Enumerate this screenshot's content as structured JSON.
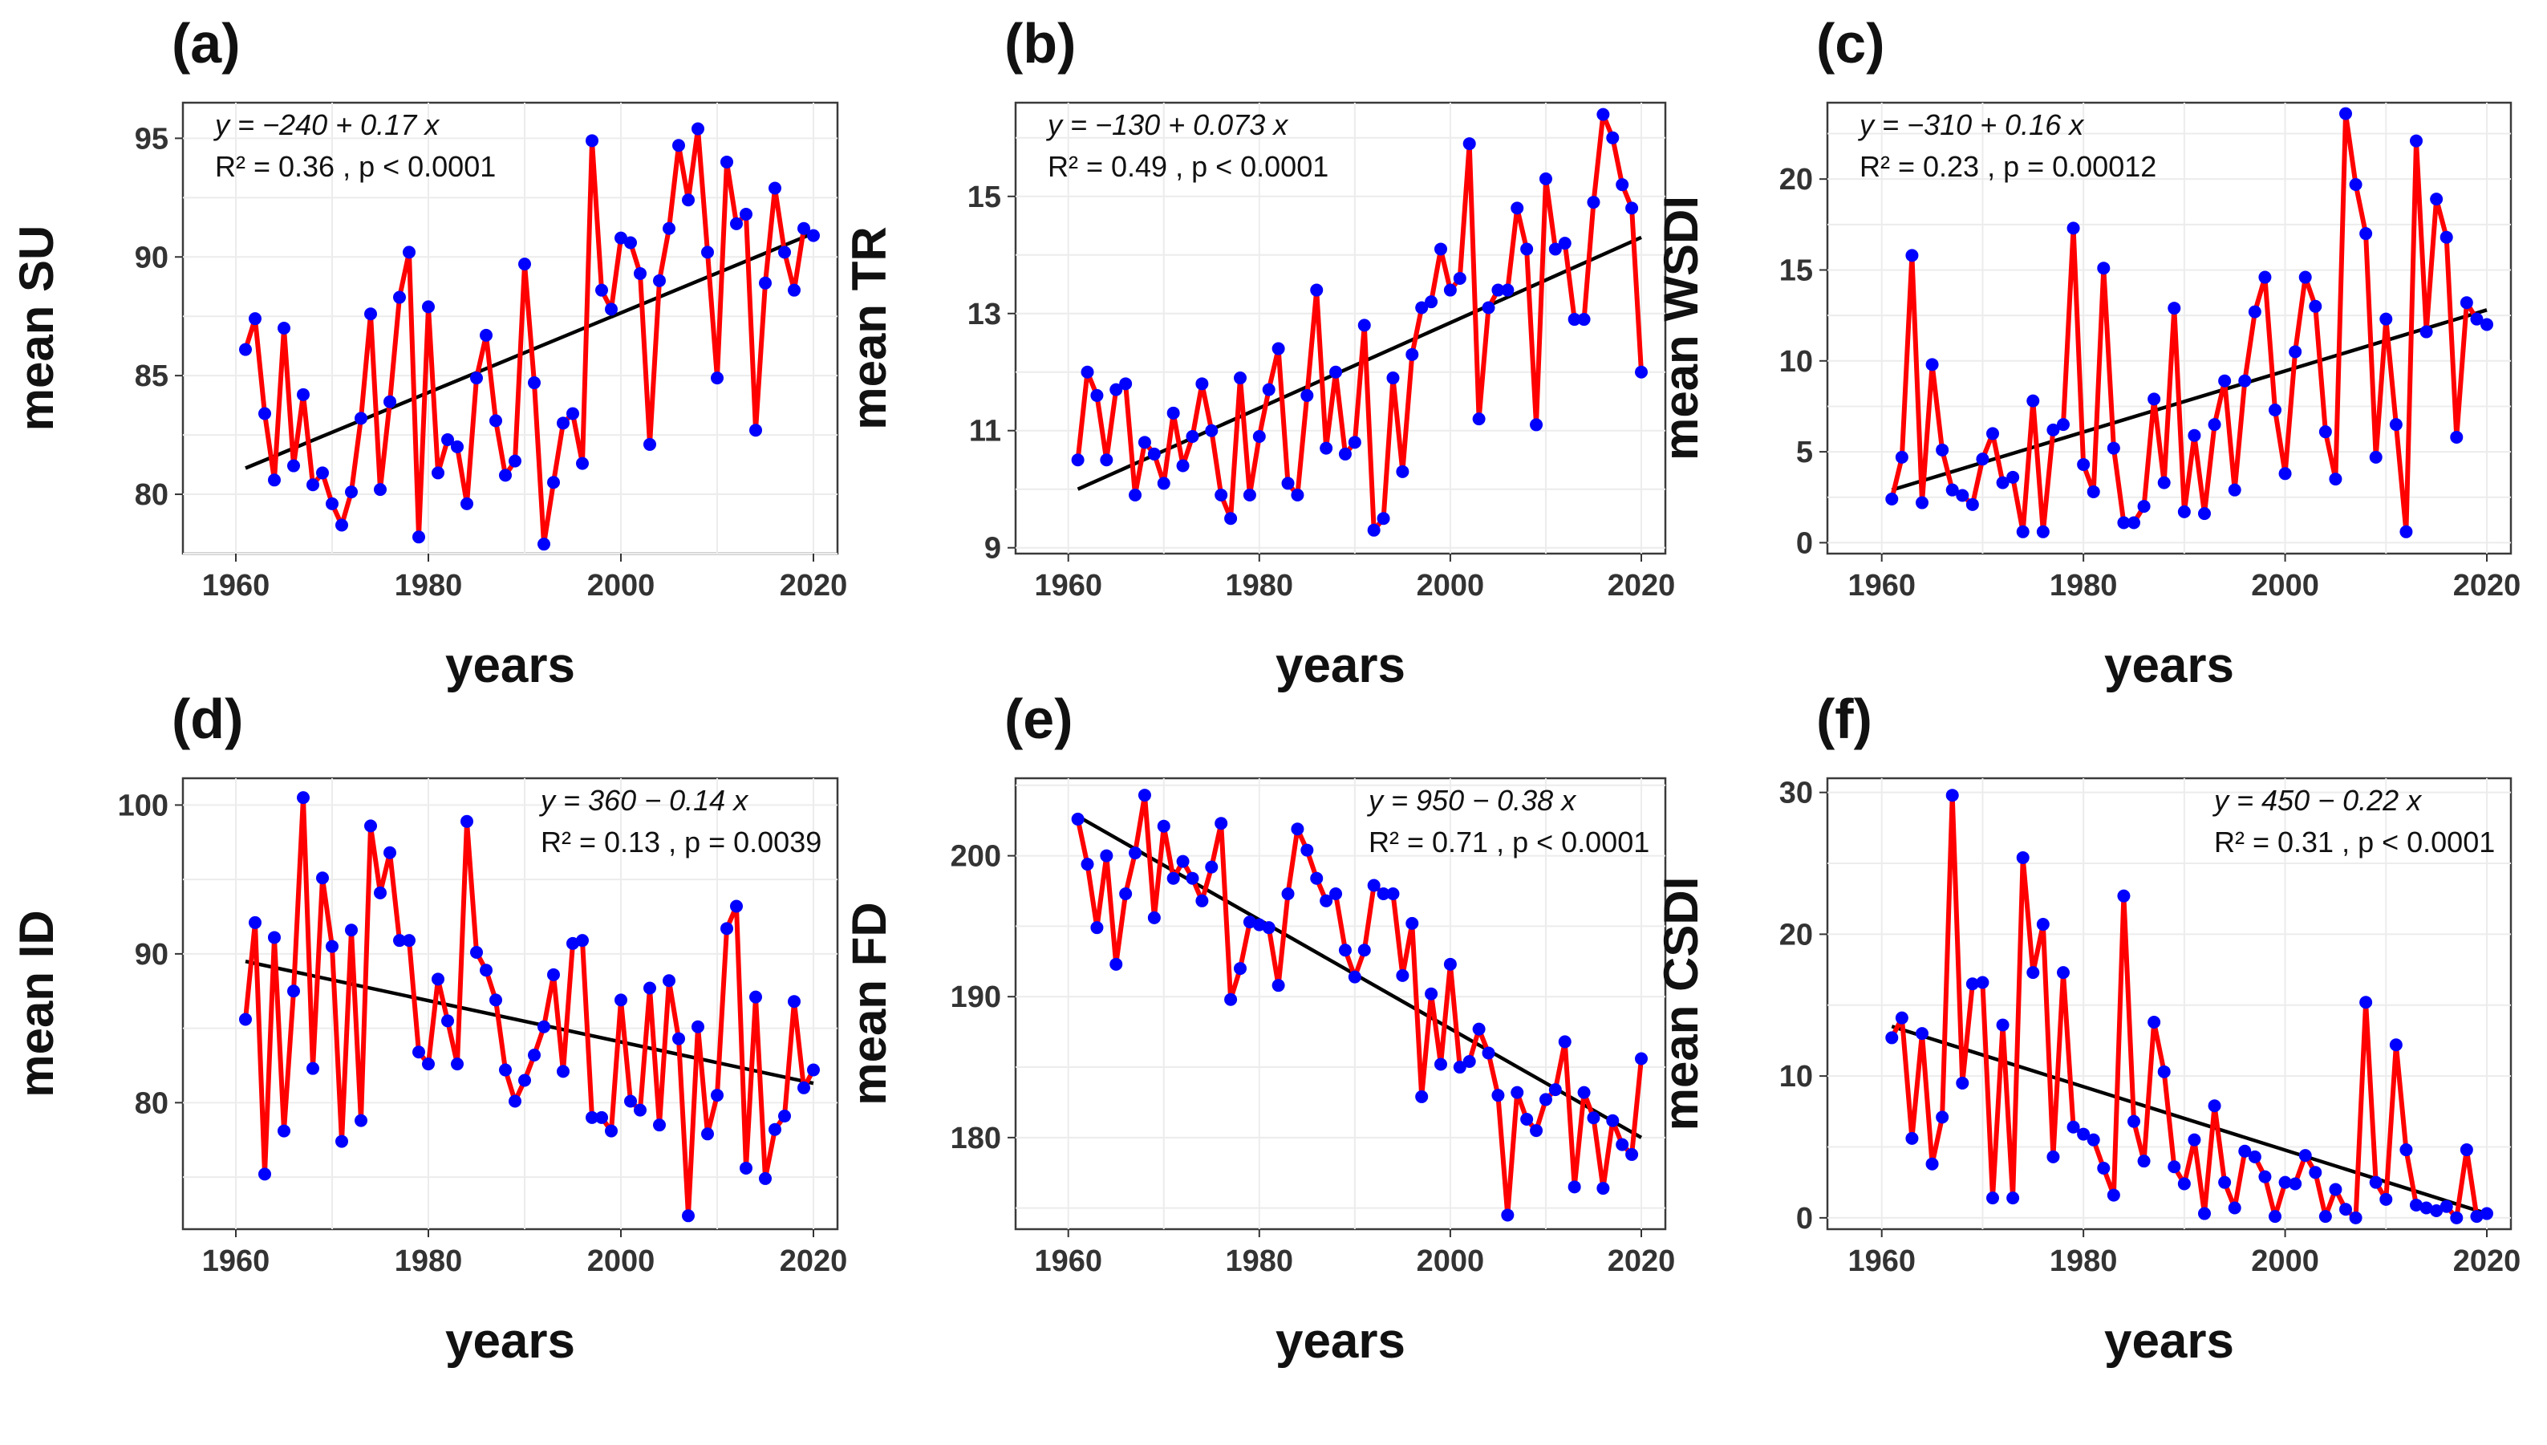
{
  "figure_panels": [
    "a",
    "b",
    "c",
    "d",
    "e",
    "f"
  ],
  "chart_data": [
    {
      "type": "line",
      "panel_label": "(a)",
      "xlabel": "years",
      "ylabel": "mean SU",
      "x_start": 1961,
      "xlim": [
        1957,
        2020
      ],
      "ylim": [
        77.5,
        96.5
      ],
      "x_ticks": [
        1960,
        1980,
        2000,
        2020
      ],
      "y_ticks": [
        80,
        85,
        90,
        95
      ],
      "equation": "y = −240 + 0.17 x",
      "r2_text": "R² = 0.36 ,  p < 0.0001",
      "annotation_position": "top-left",
      "trend": {
        "x": [
          1961,
          2020
        ],
        "y": [
          81.1,
          91.0
        ]
      },
      "values": [
        86.1,
        87.4,
        83.4,
        80.6,
        87.0,
        81.2,
        84.2,
        80.4,
        80.9,
        79.6,
        78.7,
        80.1,
        83.2,
        87.6,
        80.2,
        83.9,
        88.3,
        90.2,
        78.2,
        87.9,
        80.9,
        82.3,
        82.0,
        79.6,
        84.9,
        86.7,
        83.1,
        80.8,
        81.4,
        89.7,
        84.7,
        77.9,
        80.5,
        83.0,
        83.4,
        81.3,
        94.9,
        88.6,
        87.8,
        90.8,
        90.6,
        89.3,
        82.1,
        89.0,
        91.2,
        94.7,
        92.4,
        95.4,
        90.2,
        84.9,
        94.0,
        91.4,
        91.8,
        82.7,
        88.9,
        92.9,
        90.2,
        88.6,
        91.2,
        90.9
      ]
    },
    {
      "type": "line",
      "panel_label": "(b)",
      "xlabel": "years",
      "ylabel": "mean TR",
      "x_start": 1961,
      "xlim": [
        1957,
        2020
      ],
      "ylim": [
        8.9,
        16.6
      ],
      "x_ticks": [
        1960,
        1980,
        2000,
        2020
      ],
      "y_ticks": [
        9,
        11,
        13,
        15
      ],
      "equation": "y = −130 + 0.073 x",
      "r2_text": "R² = 0.49 ,  p < 0.0001",
      "annotation_position": "top-left",
      "trend": {
        "x": [
          1961,
          2020
        ],
        "y": [
          10.0,
          14.3
        ]
      },
      "values": [
        10.5,
        12.0,
        11.6,
        10.5,
        11.7,
        11.8,
        9.9,
        10.8,
        10.6,
        10.1,
        11.3,
        10.4,
        10.9,
        11.8,
        11.0,
        9.9,
        9.5,
        11.9,
        9.9,
        10.9,
        11.7,
        12.4,
        10.1,
        9.9,
        11.6,
        13.4,
        10.7,
        12.0,
        10.6,
        10.8,
        12.8,
        9.3,
        9.5,
        11.9,
        10.3,
        12.3,
        13.1,
        13.2,
        14.1,
        13.4,
        13.6,
        15.9,
        11.2,
        13.1,
        13.4,
        13.4,
        14.8,
        14.1,
        11.1,
        15.3,
        14.1,
        14.2,
        12.9,
        12.9,
        14.9,
        16.4,
        16.0,
        15.2,
        14.8,
        12.0
      ]
    },
    {
      "type": "line",
      "panel_label": "(c)",
      "xlabel": "years",
      "ylabel": "mean WSDI",
      "x_start": 1961,
      "xlim": [
        1957,
        2020
      ],
      "ylim": [
        -0.6,
        24.2
      ],
      "x_ticks": [
        1960,
        1980,
        2000,
        2020
      ],
      "y_ticks": [
        0,
        5,
        10,
        15,
        20
      ],
      "equation": "y = −310 + 0.16 x",
      "r2_text": "R² = 0.23 ,  p = 0.00012",
      "annotation_position": "top-left",
      "trend": {
        "x": [
          1961,
          2020
        ],
        "y": [
          2.9,
          12.8
        ]
      },
      "values": [
        2.4,
        4.7,
        15.8,
        2.2,
        9.8,
        5.1,
        2.9,
        2.6,
        2.1,
        4.6,
        6.0,
        3.3,
        3.6,
        0.6,
        7.8,
        0.6,
        6.2,
        6.5,
        17.3,
        4.3,
        2.8,
        15.1,
        5.2,
        1.1,
        1.1,
        2.0,
        7.9,
        3.3,
        12.9,
        1.7,
        5.9,
        1.6,
        6.5,
        8.9,
        2.9,
        8.9,
        12.7,
        14.6,
        7.3,
        3.8,
        10.5,
        14.6,
        13.0,
        6.1,
        3.5,
        23.6,
        19.7,
        17.0,
        4.7,
        12.3,
        6.5,
        0.6,
        22.1,
        11.6,
        18.9,
        16.8,
        5.8,
        13.2,
        12.3,
        12.0
      ]
    },
    {
      "type": "line",
      "panel_label": "(d)",
      "xlabel": "years",
      "ylabel": "mean ID",
      "x_start": 1961,
      "xlim": [
        1957,
        2020
      ],
      "ylim": [
        71.5,
        101.8
      ],
      "x_ticks": [
        1960,
        1980,
        2000,
        2020
      ],
      "y_ticks": [
        80,
        90,
        100
      ],
      "equation": "y = 360 − 0.14 x",
      "r2_text": "R² = 0.13 ,  p = 0.0039",
      "annotation_position": "top-right",
      "trend": {
        "x": [
          1961,
          2020
        ],
        "y": [
          89.5,
          81.3
        ]
      },
      "values": [
        85.6,
        92.1,
        75.2,
        91.1,
        78.1,
        87.5,
        100.5,
        82.3,
        95.1,
        90.5,
        77.4,
        91.6,
        78.8,
        98.6,
        94.1,
        96.8,
        90.9,
        90.9,
        83.4,
        82.6,
        88.3,
        85.5,
        82.6,
        98.9,
        90.1,
        88.9,
        86.9,
        82.2,
        80.1,
        81.5,
        83.2,
        85.1,
        88.6,
        82.1,
        90.7,
        90.9,
        79.0,
        79.0,
        78.1,
        86.9,
        80.1,
        79.5,
        87.7,
        78.5,
        88.2,
        84.3,
        72.4,
        85.1,
        77.9,
        80.5,
        91.7,
        93.2,
        75.6,
        87.1,
        74.9,
        78.2,
        79.1,
        86.8,
        81.0,
        82.2
      ]
    },
    {
      "type": "line",
      "panel_label": "(e)",
      "xlabel": "years",
      "ylabel": "mean FD",
      "x_start": 1961,
      "xlim": [
        1957,
        2020
      ],
      "ylim": [
        173.5,
        205.5
      ],
      "x_ticks": [
        1960,
        1980,
        2000,
        2020
      ],
      "y_ticks": [
        180,
        190,
        200
      ],
      "equation": "y = 950 − 0.38 x",
      "r2_text": "R² = 0.71 ,  p < 0.0001",
      "annotation_position": "top-right",
      "trend": {
        "x": [
          1961,
          2020
        ],
        "y": [
          202.8,
          180.0
        ]
      },
      "values": [
        202.6,
        199.4,
        194.9,
        200.0,
        192.3,
        197.3,
        200.2,
        204.3,
        195.6,
        202.1,
        198.4,
        199.6,
        198.4,
        196.8,
        199.2,
        202.3,
        189.8,
        192.0,
        195.3,
        195.1,
        194.9,
        190.8,
        197.3,
        201.9,
        200.4,
        198.4,
        196.8,
        197.3,
        193.3,
        191.4,
        193.3,
        197.9,
        197.3,
        197.3,
        191.5,
        195.2,
        182.9,
        190.2,
        185.2,
        192.3,
        185.0,
        185.4,
        187.7,
        186.0,
        183.0,
        174.5,
        183.2,
        181.3,
        180.5,
        182.7,
        183.4,
        186.8,
        176.5,
        183.2,
        181.4,
        176.4,
        181.2,
        179.5,
        178.8,
        185.6
      ]
    },
    {
      "type": "line",
      "panel_label": "(f)",
      "xlabel": "years",
      "ylabel": "mean CSDI",
      "x_start": 1961,
      "xlim": [
        1957,
        2020
      ],
      "ylim": [
        -0.8,
        31.0
      ],
      "x_ticks": [
        1960,
        1980,
        2000,
        2020
      ],
      "y_ticks": [
        0,
        10,
        20,
        30
      ],
      "equation": "y = 450 − 0.22 x",
      "r2_text": "R² = 0.31 ,  p < 0.0001",
      "annotation_position": "top-right",
      "trend": {
        "x": [
          1961,
          2020
        ],
        "y": [
          13.5,
          0.3
        ]
      },
      "values": [
        12.7,
        14.1,
        5.6,
        13.0,
        3.8,
        7.1,
        29.8,
        9.5,
        16.5,
        16.6,
        1.4,
        13.6,
        1.4,
        25.4,
        17.3,
        20.7,
        4.3,
        17.3,
        6.4,
        5.9,
        5.5,
        3.5,
        1.6,
        22.7,
        6.8,
        4.0,
        13.8,
        10.3,
        3.6,
        2.4,
        5.5,
        0.3,
        7.9,
        2.5,
        0.7,
        4.7,
        4.3,
        2.9,
        0.1,
        2.5,
        2.4,
        4.4,
        3.2,
        0.1,
        2.0,
        0.6,
        0.0,
        15.2,
        2.5,
        1.3,
        12.2,
        4.8,
        0.9,
        0.7,
        0.5,
        0.8,
        0.0,
        4.8,
        0.1,
        0.3
      ]
    }
  ]
}
